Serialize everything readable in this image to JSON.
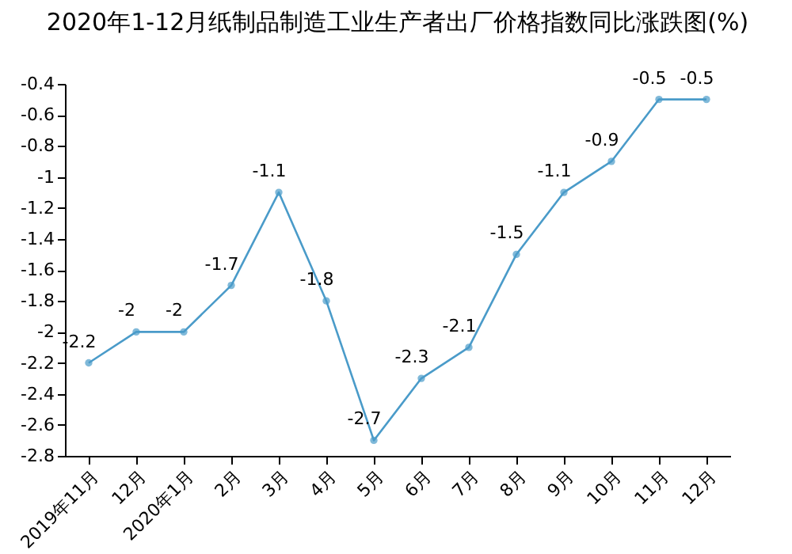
{
  "chart_data": {
    "type": "line",
    "title": "2020年1-12月纸制品制造工业生产者出厂价格指数同比涨跌图(%)",
    "categories": [
      "2019年11月",
      "12月",
      "2020年1月",
      "2月",
      "3月",
      "4月",
      "5月",
      "6月",
      "7月",
      "8月",
      "9月",
      "10月",
      "11月",
      "12月"
    ],
    "series": [
      {
        "color": "#4a9bc9",
        "values": [
          -2.2,
          -2,
          -2,
          -1.7,
          -1.1,
          -1.8,
          -2.7,
          -2.3,
          -2.1,
          -1.5,
          -1.1,
          -0.9,
          -0.5,
          -0.5
        ]
      }
    ],
    "ylim": [
      -2.8,
      -0.4
    ],
    "yticks": [
      -2.8,
      -2.6,
      -2.4,
      -2.2,
      -2,
      -1.8,
      -1.6,
      -1.4,
      -1.2,
      -1,
      -0.8,
      -0.6,
      -0.4
    ],
    "grid": false,
    "marker": "circle",
    "data_labels": true
  }
}
